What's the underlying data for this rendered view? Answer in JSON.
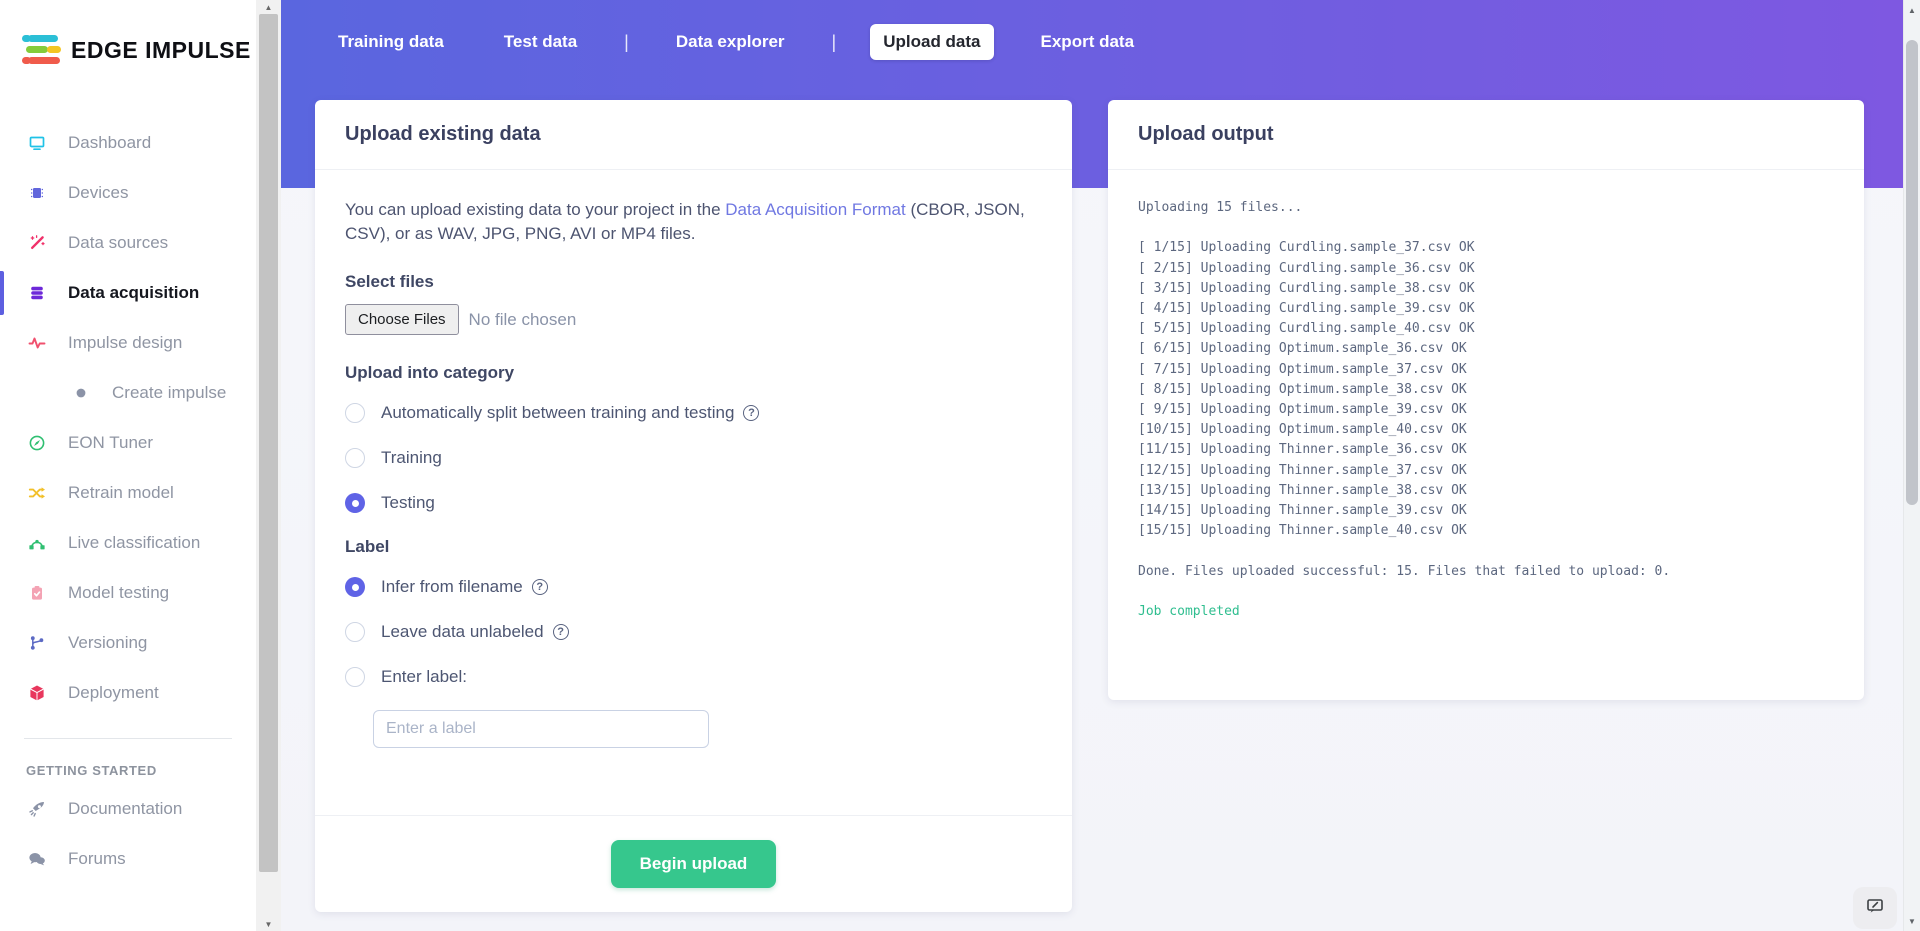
{
  "brand": {
    "name": "EDGE IMPULSE"
  },
  "colors": {
    "band_start": "#5a66df",
    "band_end": "#7e58e1",
    "accent": "#5f63e6",
    "success": "#36c78d",
    "link": "#7078e2",
    "console_ok": "#2fbe8f"
  },
  "sidebar": {
    "items": [
      {
        "label": "Dashboard",
        "icon": "monitor-icon",
        "color": "#1fc2e7",
        "active": false,
        "indent": false
      },
      {
        "label": "Devices",
        "icon": "chip-icon",
        "color": "#6166dc",
        "active": false,
        "indent": false
      },
      {
        "label": "Data sources",
        "icon": "wand-icon",
        "color": "#f0316a",
        "active": false,
        "indent": false
      },
      {
        "label": "Data acquisition",
        "icon": "database-icon",
        "color": "#6d28d9",
        "active": true,
        "indent": false
      },
      {
        "label": "Impulse design",
        "icon": "waveform-icon",
        "color": "#f0506e",
        "active": false,
        "indent": false
      },
      {
        "label": "Create impulse",
        "icon": "dot-icon",
        "color": "#8b93a7",
        "active": false,
        "indent": true
      },
      {
        "label": "EON Tuner",
        "icon": "compass-icon",
        "color": "#2fbf71",
        "active": false,
        "indent": false
      },
      {
        "label": "Retrain model",
        "icon": "shuffle-icon",
        "color": "#f2c029",
        "active": false,
        "indent": false
      },
      {
        "label": "Live classification",
        "icon": "nodes-icon",
        "color": "#2fbf71",
        "active": false,
        "indent": false
      },
      {
        "label": "Model testing",
        "icon": "clipboard-icon",
        "color": "#f4a3b4",
        "active": false,
        "indent": false
      },
      {
        "label": "Versioning",
        "icon": "branch-icon",
        "color": "#5c6ac4",
        "active": false,
        "indent": false
      },
      {
        "label": "Deployment",
        "icon": "box-icon",
        "color": "#e8375d",
        "active": false,
        "indent": false
      }
    ],
    "section_header": "GETTING STARTED",
    "footer_items": [
      {
        "label": "Documentation",
        "icon": "rocket-icon",
        "color": "#8b93a7"
      },
      {
        "label": "Forums",
        "icon": "chat-icon",
        "color": "#8b93a7"
      }
    ]
  },
  "tabs": {
    "items": [
      {
        "label": "Training data",
        "active": false
      },
      {
        "label": "Test data",
        "active": false
      },
      {
        "sep": true
      },
      {
        "label": "Data explorer",
        "active": false
      },
      {
        "sep": true
      },
      {
        "label": "Upload data",
        "active": true
      },
      {
        "label": "Export data",
        "active": false
      }
    ]
  },
  "upload_card": {
    "title": "Upload existing data",
    "intro": {
      "before": "You can upload existing data to your project in the ",
      "link": "Data Acquisition Format",
      "after": " (CBOR, JSON, CSV), or as WAV, JPG, PNG, AVI or MP4 files."
    },
    "select_files": {
      "label": "Select files",
      "button": "Choose Files",
      "status": "No file chosen"
    },
    "category": {
      "label": "Upload into category",
      "options": [
        {
          "label": "Automatically split between training and testing",
          "help": true,
          "selected": false
        },
        {
          "label": "Training",
          "help": false,
          "selected": false
        },
        {
          "label": "Testing",
          "help": false,
          "selected": true
        }
      ]
    },
    "label_section": {
      "label": "Label",
      "options": [
        {
          "label": "Infer from filename",
          "help": true,
          "selected": true
        },
        {
          "label": "Leave data unlabeled",
          "help": true,
          "selected": false
        },
        {
          "label": "Enter label:",
          "help": false,
          "selected": false
        }
      ],
      "input_placeholder": "Enter a label"
    },
    "submit_label": "Begin upload"
  },
  "output_card": {
    "title": "Upload output",
    "console_lines": [
      "Uploading 15 files...",
      "",
      "[ 1/15] Uploading Curdling.sample_37.csv OK",
      "[ 2/15] Uploading Curdling.sample_36.csv OK",
      "[ 3/15] Uploading Curdling.sample_38.csv OK",
      "[ 4/15] Uploading Curdling.sample_39.csv OK",
      "[ 5/15] Uploading Curdling.sample_40.csv OK",
      "[ 6/15] Uploading Optimum.sample_36.csv OK",
      "[ 7/15] Uploading Optimum.sample_37.csv OK",
      "[ 8/15] Uploading Optimum.sample_38.csv OK",
      "[ 9/15] Uploading Optimum.sample_39.csv OK",
      "[10/15] Uploading Optimum.sample_40.csv OK",
      "[11/15] Uploading Thinner.sample_36.csv OK",
      "[12/15] Uploading Thinner.sample_37.csv OK",
      "[13/15] Uploading Thinner.sample_38.csv OK",
      "[14/15] Uploading Thinner.sample_39.csv OK",
      "[15/15] Uploading Thinner.sample_40.csv OK",
      "",
      "Done. Files uploaded successful: 15. Files that failed to upload: 0.",
      ""
    ],
    "status": "Job completed"
  }
}
